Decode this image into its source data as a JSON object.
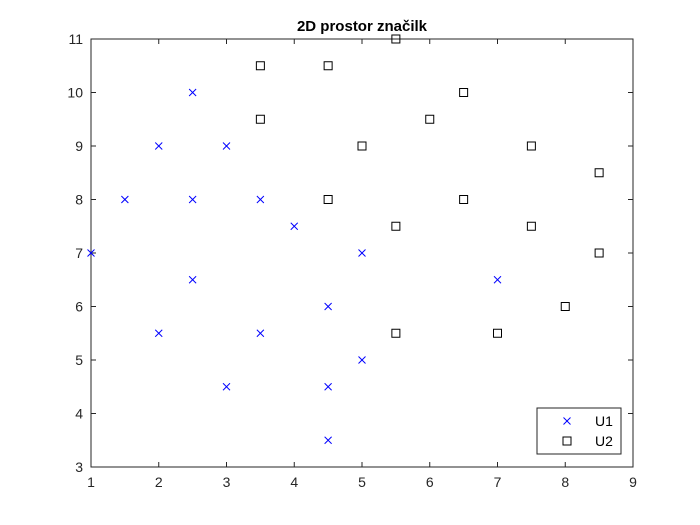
{
  "chart_data": {
    "type": "scatter",
    "title": "2D prostor značilk",
    "xlabel": "",
    "ylabel": "",
    "xlim": [
      1,
      9
    ],
    "ylim": [
      3,
      11
    ],
    "xticks": [
      1,
      2,
      3,
      4,
      5,
      6,
      7,
      8,
      9
    ],
    "yticks": [
      3,
      4,
      5,
      6,
      7,
      8,
      9,
      10,
      11
    ],
    "grid": false,
    "legend_position": "bottom-right",
    "series": [
      {
        "name": "U1",
        "marker": "x",
        "color": "#0000ff",
        "points": [
          [
            1,
            7
          ],
          [
            1.5,
            8
          ],
          [
            2,
            9
          ],
          [
            2,
            5.5
          ],
          [
            2.5,
            10
          ],
          [
            2.5,
            8
          ],
          [
            2.5,
            6.5
          ],
          [
            3,
            9
          ],
          [
            3,
            4.5
          ],
          [
            3.5,
            8
          ],
          [
            3.5,
            5.5
          ],
          [
            4,
            7.5
          ],
          [
            4.5,
            6
          ],
          [
            4.5,
            4.5
          ],
          [
            4.5,
            3.5
          ],
          [
            5,
            7
          ],
          [
            5,
            5
          ],
          [
            7,
            6.5
          ]
        ]
      },
      {
        "name": "U2",
        "marker": "square",
        "color": "#000000",
        "points": [
          [
            3.5,
            10.5
          ],
          [
            3.5,
            9.5
          ],
          [
            4.5,
            10.5
          ],
          [
            4.5,
            8
          ],
          [
            5,
            9
          ],
          [
            5.5,
            11
          ],
          [
            5.5,
            7.5
          ],
          [
            5.5,
            5.5
          ],
          [
            6,
            9.5
          ],
          [
            6.5,
            10
          ],
          [
            6.5,
            8
          ],
          [
            7,
            5.5
          ],
          [
            7.5,
            9
          ],
          [
            7.5,
            7.5
          ],
          [
            8,
            6
          ],
          [
            8.5,
            8.5
          ],
          [
            8.5,
            7
          ]
        ]
      }
    ]
  }
}
